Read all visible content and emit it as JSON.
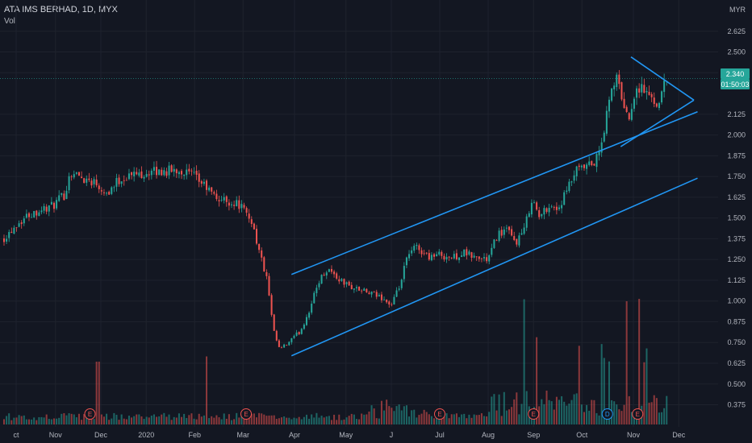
{
  "chart_data": {
    "type": "candlestick",
    "title": "ATA IMS BERHAD, 1D, MYX",
    "volume_label": "Vol",
    "currency": "MYR",
    "last_price": "2.340",
    "countdown": "01:50:03",
    "ylim": [
      0.3,
      2.75
    ],
    "yticks": [
      {
        "value": 2.625,
        "label": "2.625"
      },
      {
        "value": 2.5,
        "label": "2.500"
      },
      {
        "value": 2.375,
        "label": "2.375"
      },
      {
        "value": 2.125,
        "label": "2.125"
      },
      {
        "value": 2.0,
        "label": "2.000"
      },
      {
        "value": 1.875,
        "label": "1.875"
      },
      {
        "value": 1.75,
        "label": "1.750"
      },
      {
        "value": 1.625,
        "label": "1.625"
      },
      {
        "value": 1.5,
        "label": "1.500"
      },
      {
        "value": 1.375,
        "label": "1.375"
      },
      {
        "value": 1.25,
        "label": "1.250"
      },
      {
        "value": 1.125,
        "label": "1.125"
      },
      {
        "value": 1.0,
        "label": "1.000"
      },
      {
        "value": 0.875,
        "label": "0.875"
      },
      {
        "value": 0.75,
        "label": "0.750"
      },
      {
        "value": 0.625,
        "label": "0.625"
      },
      {
        "value": 0.5,
        "label": "0.500"
      },
      {
        "value": 0.375,
        "label": "0.375"
      }
    ],
    "xticks": [
      {
        "t": 0.02,
        "label": "ct"
      },
      {
        "t": 0.085,
        "label": "Nov"
      },
      {
        "t": 0.16,
        "label": "Dec"
      },
      {
        "t": 0.235,
        "label": "2020"
      },
      {
        "t": 0.315,
        "label": "Feb"
      },
      {
        "t": 0.395,
        "label": "Mar"
      },
      {
        "t": 0.48,
        "label": "Apr"
      },
      {
        "t": 0.565,
        "label": "May"
      },
      {
        "t": 0.64,
        "label": "J"
      },
      {
        "t": 0.72,
        "label": "Jul"
      },
      {
        "t": 0.8,
        "label": "Aug"
      },
      {
        "t": 0.875,
        "label": "Sep"
      },
      {
        "t": 0.955,
        "label": "Oct"
      },
      {
        "t": 1.04,
        "label": "Nov"
      },
      {
        "t": 1.115,
        "label": "Dec"
      }
    ],
    "price_path": [
      [
        0.0,
        1.38
      ],
      [
        0.02,
        1.46
      ],
      [
        0.04,
        1.52
      ],
      [
        0.06,
        1.55
      ],
      [
        0.08,
        1.57
      ],
      [
        0.1,
        1.64
      ],
      [
        0.11,
        1.78
      ],
      [
        0.13,
        1.74
      ],
      [
        0.15,
        1.72
      ],
      [
        0.17,
        1.65
      ],
      [
        0.19,
        1.73
      ],
      [
        0.21,
        1.76
      ],
      [
        0.23,
        1.77
      ],
      [
        0.26,
        1.78
      ],
      [
        0.29,
        1.79
      ],
      [
        0.31,
        1.76
      ],
      [
        0.33,
        1.7
      ],
      [
        0.35,
        1.62
      ],
      [
        0.37,
        1.6
      ],
      [
        0.39,
        1.58
      ],
      [
        0.4,
        1.52
      ],
      [
        0.41,
        1.48
      ],
      [
        0.42,
        1.32
      ],
      [
        0.435,
        1.12
      ],
      [
        0.445,
        0.82
      ],
      [
        0.455,
        0.71
      ],
      [
        0.465,
        0.73
      ],
      [
        0.49,
        0.82
      ],
      [
        0.505,
        0.95
      ],
      [
        0.52,
        1.12
      ],
      [
        0.535,
        1.2
      ],
      [
        0.55,
        1.14
      ],
      [
        0.57,
        1.09
      ],
      [
        0.6,
        1.05
      ],
      [
        0.625,
        1.02
      ],
      [
        0.64,
        0.97
      ],
      [
        0.655,
        1.1
      ],
      [
        0.665,
        1.25
      ],
      [
        0.68,
        1.33
      ],
      [
        0.7,
        1.27
      ],
      [
        0.72,
        1.28
      ],
      [
        0.74,
        1.26
      ],
      [
        0.76,
        1.29
      ],
      [
        0.78,
        1.26
      ],
      [
        0.8,
        1.25
      ],
      [
        0.815,
        1.4
      ],
      [
        0.83,
        1.43
      ],
      [
        0.845,
        1.35
      ],
      [
        0.86,
        1.43
      ],
      [
        0.872,
        1.62
      ],
      [
        0.885,
        1.5
      ],
      [
        0.9,
        1.58
      ],
      [
        0.915,
        1.55
      ],
      [
        0.93,
        1.66
      ],
      [
        0.945,
        1.78
      ],
      [
        0.96,
        1.8
      ],
      [
        0.975,
        1.83
      ],
      [
        0.985,
        1.9
      ],
      [
        1.0,
        2.2
      ],
      [
        1.01,
        2.35
      ],
      [
        1.02,
        2.25
      ],
      [
        1.03,
        2.09
      ],
      [
        1.04,
        2.23
      ],
      [
        1.05,
        2.3
      ],
      [
        1.065,
        2.24
      ],
      [
        1.08,
        2.19
      ],
      [
        1.095,
        2.34
      ]
    ],
    "volume_spikes": [
      {
        "t": 0.155,
        "v": 0.6
      },
      {
        "t": 0.335,
        "v": 0.65
      },
      {
        "t": 0.86,
        "v": 0.95
      },
      {
        "t": 0.88,
        "v": 0.65
      },
      {
        "t": 0.95,
        "v": 0.7
      },
      {
        "t": 0.99,
        "v": 0.55
      },
      {
        "t": 1.0,
        "v": 0.6
      },
      {
        "t": 1.03,
        "v": 1.0
      },
      {
        "t": 1.048,
        "v": 1.0
      },
      {
        "t": 1.06,
        "v": 0.5
      },
      {
        "t": 1.1,
        "v": 0.4
      }
    ],
    "events": [
      {
        "t": 0.142,
        "label": "E",
        "kind": "earnings"
      },
      {
        "t": 0.4,
        "label": "E",
        "kind": "earnings"
      },
      {
        "t": 0.72,
        "label": "E",
        "kind": "earnings"
      },
      {
        "t": 0.875,
        "label": "E",
        "kind": "earnings"
      },
      {
        "t": 0.997,
        "label": "D",
        "kind": "dividend"
      },
      {
        "t": 1.047,
        "label": "E",
        "kind": "earnings"
      }
    ],
    "trendlines": [
      {
        "name": "channel-upper",
        "points": [
          [
            0.475,
            1.16
          ],
          [
            1.146,
            2.14
          ]
        ]
      },
      {
        "name": "channel-lower",
        "points": [
          [
            0.475,
            0.67
          ],
          [
            1.146,
            1.74
          ]
        ]
      },
      {
        "name": "triangle-upper",
        "points": [
          [
            1.036,
            2.47
          ],
          [
            1.14,
            2.21
          ]
        ]
      },
      {
        "name": "triangle-lower",
        "points": [
          [
            1.019,
            1.93
          ],
          [
            1.14,
            2.21
          ]
        ]
      }
    ],
    "colors": {
      "background": "#131722",
      "grid": "#1e222d",
      "up": "#26a69a",
      "down": "#ef5350",
      "trendline": "#2196f3",
      "axis_text": "#b2b5be",
      "price_label": "#26a69a"
    }
  }
}
